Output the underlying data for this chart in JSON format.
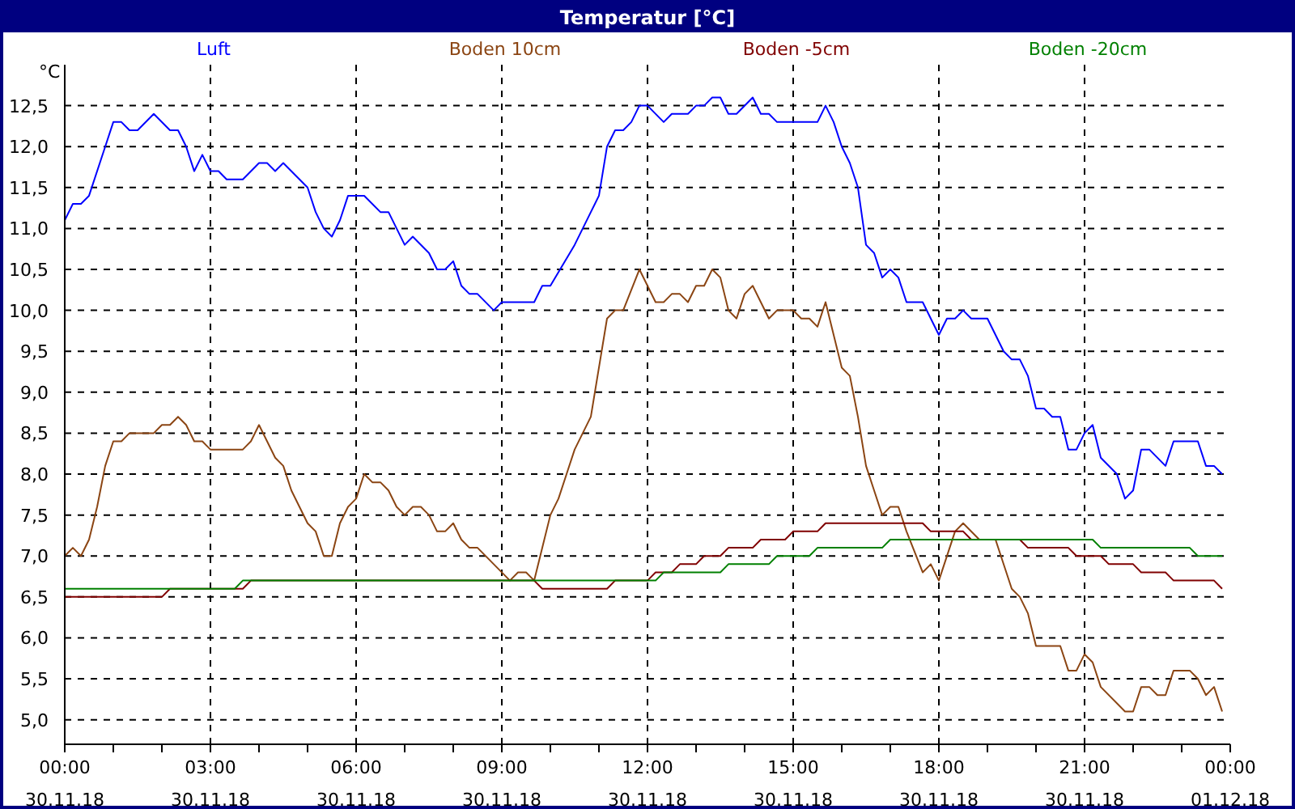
{
  "chart_data": {
    "type": "line",
    "title": "Temperatur [°C]",
    "ylabel": "°C",
    "legend": "top",
    "grid": true,
    "marker": "none",
    "line_style": "solid",
    "xlim": [
      "--11-30T00:00",
      "--12-01T00:00"
    ],
    "ylim": [
      4.7,
      13
    ],
    "xticks": [
      {
        "value": "--11-30T00:00",
        "label": "00:00\n30.11.18"
      },
      {
        "value": "--11-30T01:00",
        "label": null
      },
      {
        "value": "--11-30T02:00",
        "label": null
      },
      {
        "value": "--11-30T03:00",
        "label": "03:00\n30.11.18"
      },
      {
        "value": "--11-30T04:00",
        "label": null
      },
      {
        "value": "--11-30T05:00",
        "label": null
      },
      {
        "value": "--11-30T06:00",
        "label": "06:00\n30.11.18"
      },
      {
        "value": "--11-30T07:00",
        "label": null
      },
      {
        "value": "--11-30T08:00",
        "label": null
      },
      {
        "value": "--11-30T09:00",
        "label": "09:00\n30.11.18"
      },
      {
        "value": "--11-30T10:00",
        "label": null
      },
      {
        "value": "--11-30T11:00",
        "label": null
      },
      {
        "value": "--11-30T12:00",
        "label": "12:00\n30.11.18"
      },
      {
        "value": "--11-30T13:00",
        "label": null
      },
      {
        "value": "--11-30T14:00",
        "label": null
      },
      {
        "value": "--11-30T15:00",
        "label": "15:00\n30.11.18"
      },
      {
        "value": "--11-30T16:00",
        "label": null
      },
      {
        "value": "--11-30T17:00",
        "label": null
      },
      {
        "value": "--11-30T18:00",
        "label": "18:00\n30.11.18"
      },
      {
        "value": "--11-30T19:00",
        "label": null
      },
      {
        "value": "--11-30T20:00",
        "label": null
      },
      {
        "value": "--11-30T21:00",
        "label": "21:00\n30.11.18"
      },
      {
        "value": "--11-30T22:00",
        "label": null
      },
      {
        "value": "--11-30T23:00",
        "label": null
      },
      {
        "value": "--12-01T00:00",
        "label": "00:00\n01.12.18"
      }
    ],
    "yticks": [
      {
        "value": 5,
        "label": "5,0"
      },
      {
        "value": 5.5,
        "label": "5,5"
      },
      {
        "value": 6,
        "label": "6,0"
      },
      {
        "value": 6.5,
        "label": "6,5"
      },
      {
        "value": 7,
        "label": "7,0"
      },
      {
        "value": 7.5,
        "label": "7,5"
      },
      {
        "value": 8,
        "label": "8,0"
      },
      {
        "value": 8.5,
        "label": "8,5"
      },
      {
        "value": 9,
        "label": "9,0"
      },
      {
        "value": 9.5,
        "label": "9,5"
      },
      {
        "value": 10,
        "label": "10,0"
      },
      {
        "value": 10.5,
        "label": "10,5"
      },
      {
        "value": 11,
        "label": "11,0"
      },
      {
        "value": 11.5,
        "label": "11,5"
      },
      {
        "value": 12,
        "label": "12,0"
      },
      {
        "value": 12.5,
        "label": "12,5"
      }
    ],
    "series": [
      {
        "name": "Luft",
        "color": "#0000ff",
        "x": [
          "--11-30T00:00",
          "--11-30T00:10",
          "--11-30T00:20",
          "--11-30T00:30",
          "--11-30T00:50",
          "--11-30T01:00",
          "--11-30T01:10",
          "--11-30T01:20",
          "--11-30T01:30",
          "--11-30T01:50",
          "--11-30T02:10",
          "--11-30T02:20",
          "--11-30T02:30",
          "--11-30T02:40",
          "--11-30T02:50",
          "--11-30T03:00",
          "--11-30T03:10",
          "--11-30T03:20",
          "--11-30T03:40",
          "--11-30T04:00",
          "--11-30T04:10",
          "--11-30T04:20",
          "--11-30T04:30",
          "--11-30T05:00",
          "--11-30T05:10",
          "--11-30T05:20",
          "--11-30T05:30",
          "--11-30T05:40",
          "--11-30T05:50",
          "--11-30T06:10",
          "--11-30T06:30",
          "--11-30T06:40",
          "--11-30T07:00",
          "--11-30T07:10",
          "--11-30T07:30",
          "--11-30T07:40",
          "--11-30T07:50",
          "--11-30T08:00",
          "--11-30T08:10",
          "--11-30T08:20",
          "--11-30T08:30",
          "--11-30T08:50",
          "--11-30T09:00",
          "--11-30T09:40",
          "--11-30T09:50",
          "--11-30T10:00",
          "--11-30T10:30",
          "--11-30T10:40",
          "--11-30T10:50",
          "--11-30T11:00",
          "--11-30T11:10",
          "--11-30T11:20",
          "--11-30T11:30",
          "--11-30T11:40",
          "--11-30T11:50",
          "--11-30T12:00",
          "--11-30T12:20",
          "--11-30T12:30",
          "--11-30T12:50",
          "--11-30T13:00",
          "--11-30T13:10",
          "--11-30T13:20",
          "--11-30T13:30",
          "--11-30T13:40",
          "--11-30T13:50",
          "--11-30T14:10",
          "--11-30T14:20",
          "--11-30T14:30",
          "--11-30T14:40",
          "--11-30T15:30",
          "--11-30T15:40",
          "--11-30T15:50",
          "--11-30T16:00",
          "--11-30T16:10",
          "--11-30T16:20",
          "--11-30T16:30",
          "--11-30T16:40",
          "--11-30T16:50",
          "--11-30T17:00",
          "--11-30T17:10",
          "--11-30T17:20",
          "--11-30T17:40",
          "--11-30T18:00",
          "--11-30T18:10",
          "--11-30T18:20",
          "--11-30T18:30",
          "--11-30T18:40",
          "--11-30T19:00",
          "--11-30T19:20",
          "--11-30T19:30",
          "--11-30T19:40",
          "--11-30T19:50",
          "--11-30T20:00",
          "--11-30T20:10",
          "--11-30T20:20",
          "--11-30T20:30",
          "--11-30T20:40",
          "--11-30T20:50",
          "--11-30T21:00",
          "--11-30T21:10",
          "--11-30T21:20",
          "--11-30T21:40",
          "--11-30T21:50",
          "--11-30T22:00",
          "--11-30T22:10",
          "--11-30T22:20",
          "--11-30T22:40",
          "--11-30T22:50",
          "--11-30T23:20",
          "--11-30T23:30",
          "--11-30T23:40",
          "--11-30T23:50"
        ],
        "values": [
          11.1,
          11.3,
          11.3,
          11.4,
          12,
          12.3,
          12.3,
          12.2,
          12.2,
          12.4,
          12.2,
          12.2,
          12,
          11.7,
          11.9,
          11.7,
          11.7,
          11.6,
          11.6,
          11.8,
          11.8,
          11.7,
          11.8,
          11.5,
          11.2,
          11,
          10.9,
          11.1,
          11.4,
          11.4,
          11.2,
          11.2,
          10.8,
          10.9,
          10.7,
          10.5,
          10.5,
          10.6,
          10.3,
          10.2,
          10.2,
          10,
          10.1,
          10.1,
          10.3,
          10.3,
          10.8,
          11,
          11.2,
          11.4,
          12,
          12.2,
          12.2,
          12.3,
          12.5,
          12.5,
          12.3,
          12.4,
          12.4,
          12.5,
          12.5,
          12.6,
          12.6,
          12.4,
          12.4,
          12.6,
          12.4,
          12.4,
          12.3,
          12.3,
          12.5,
          12.3,
          12,
          11.8,
          11.5,
          10.8,
          10.7,
          10.4,
          10.5,
          10.4,
          10.1,
          10.1,
          9.7,
          9.9,
          9.9,
          10,
          9.9,
          9.9,
          9.5,
          9.4,
          9.4,
          9.2,
          8.8,
          8.8,
          8.7,
          8.7,
          8.3,
          8.3,
          8.5,
          8.6,
          8.2,
          8,
          7.7,
          7.8,
          8.3,
          8.3,
          8.1,
          8.4,
          8.4,
          8.1,
          8.1,
          8
        ]
      },
      {
        "name": "Boden 10cm",
        "color": "#8b4513",
        "x": [
          "--11-30T00:00",
          "--11-30T00:10",
          "--11-30T00:20",
          "--11-30T00:30",
          "--11-30T00:40",
          "--11-30T00:50",
          "--11-30T01:00",
          "--11-30T01:10",
          "--11-30T01:20",
          "--11-30T01:50",
          "--11-30T02:00",
          "--11-30T02:10",
          "--11-30T02:20",
          "--11-30T02:30",
          "--11-30T02:40",
          "--11-30T02:50",
          "--11-30T03:00",
          "--11-30T03:40",
          "--11-30T03:50",
          "--11-30T04:00",
          "--11-30T04:10",
          "--11-30T04:20",
          "--11-30T04:30",
          "--11-30T04:40",
          "--11-30T04:50",
          "--11-30T05:00",
          "--11-30T05:10",
          "--11-30T05:20",
          "--11-30T05:30",
          "--11-30T05:40",
          "--11-30T05:50",
          "--11-30T06:00",
          "--11-30T06:10",
          "--11-30T06:20",
          "--11-30T06:30",
          "--11-30T06:40",
          "--11-30T06:50",
          "--11-30T07:00",
          "--11-30T07:10",
          "--11-30T07:20",
          "--11-30T07:30",
          "--11-30T07:40",
          "--11-30T07:50",
          "--11-30T08:00",
          "--11-30T08:10",
          "--11-30T08:20",
          "--11-30T08:30",
          "--11-30T09:10",
          "--11-30T09:20",
          "--11-30T09:30",
          "--11-30T09:40",
          "--11-30T09:50",
          "--11-30T10:00",
          "--11-30T10:10",
          "--11-30T10:20",
          "--11-30T10:30",
          "--11-30T10:40",
          "--11-30T10:50",
          "--11-30T11:00",
          "--11-30T11:10",
          "--11-30T11:20",
          "--11-30T11:30",
          "--11-30T11:50",
          "--11-30T12:00",
          "--11-30T12:10",
          "--11-30T12:20",
          "--11-30T12:30",
          "--11-30T12:40",
          "--11-30T12:50",
          "--11-30T13:00",
          "--11-30T13:10",
          "--11-30T13:20",
          "--11-30T13:30",
          "--11-30T13:40",
          "--11-30T13:50",
          "--11-30T14:00",
          "--11-30T14:10",
          "--11-30T14:30",
          "--11-30T14:40",
          "--11-30T15:00",
          "--11-30T15:10",
          "--11-30T15:20",
          "--11-30T15:30",
          "--11-30T15:40",
          "--11-30T15:50",
          "--11-30T16:00",
          "--11-30T16:10",
          "--11-30T16:20",
          "--11-30T16:30",
          "--11-30T16:40",
          "--11-30T16:50",
          "--11-30T17:00",
          "--11-30T17:10",
          "--11-30T17:20",
          "--11-30T17:40",
          "--11-30T17:50",
          "--11-30T18:00",
          "--11-30T18:20",
          "--11-30T18:30",
          "--11-30T18:50",
          "--11-30T19:10",
          "--11-30T19:30",
          "--11-30T19:40",
          "--11-30T19:50",
          "--11-30T20:00",
          "--11-30T20:30",
          "--11-30T20:40",
          "--11-30T20:50",
          "--11-30T21:00",
          "--11-30T21:10",
          "--11-30T21:20",
          "--11-30T21:50",
          "--11-30T22:00",
          "--11-30T22:10",
          "--11-30T22:20",
          "--11-30T22:30",
          "--11-30T22:40",
          "--11-30T22:50",
          "--11-30T23:10",
          "--11-30T23:20",
          "--11-30T23:30",
          "--11-30T23:40",
          "--11-30T23:50"
        ],
        "values": [
          7,
          7.1,
          7,
          7.2,
          7.6,
          8.1,
          8.4,
          8.4,
          8.5,
          8.5,
          8.6,
          8.6,
          8.7,
          8.6,
          8.4,
          8.4,
          8.3,
          8.3,
          8.4,
          8.6,
          8.4,
          8.2,
          8.1,
          7.8,
          7.6,
          7.4,
          7.3,
          7,
          7,
          7.4,
          7.6,
          7.7,
          8,
          7.9,
          7.9,
          7.8,
          7.6,
          7.5,
          7.6,
          7.6,
          7.5,
          7.3,
          7.3,
          7.4,
          7.2,
          7.1,
          7.1,
          6.7,
          6.8,
          6.8,
          6.7,
          7.1,
          7.5,
          7.7,
          8,
          8.3,
          8.5,
          8.7,
          9.3,
          9.9,
          10,
          10,
          10.5,
          10.3,
          10.1,
          10.1,
          10.2,
          10.2,
          10.1,
          10.3,
          10.3,
          10.5,
          10.4,
          10,
          9.9,
          10.2,
          10.3,
          9.9,
          10,
          10,
          9.9,
          9.9,
          9.8,
          10.1,
          9.7,
          9.3,
          9.2,
          8.7,
          8.1,
          7.8,
          7.5,
          7.6,
          7.6,
          7.3,
          6.8,
          6.9,
          6.7,
          7.3,
          7.4,
          7.2,
          7.2,
          6.6,
          6.5,
          6.3,
          5.9,
          5.9,
          5.6,
          5.6,
          5.8,
          5.7,
          5.4,
          5.1,
          5.1,
          5.4,
          5.4,
          5.3,
          5.3,
          5.6,
          5.6,
          5.5,
          5.3,
          5.4,
          5.1
        ]
      },
      {
        "name": "Boden -5cm",
        "color": "#800000",
        "x": [
          "--11-30T00:00",
          "--11-30T02:00",
          "--11-30T02:10",
          "--11-30T03:40",
          "--11-30T03:50",
          "--11-30T09:40",
          "--11-30T09:50",
          "--11-30T11:10",
          "--11-30T11:20",
          "--11-30T12:00",
          "--11-30T12:10",
          "--11-30T12:30",
          "--11-30T12:40",
          "--11-30T13:00",
          "--11-30T13:10",
          "--11-30T13:30",
          "--11-30T13:40",
          "--11-30T14:10",
          "--11-30T14:20",
          "--11-30T14:50",
          "--11-30T15:00",
          "--11-30T15:30",
          "--11-30T15:40",
          "--11-30T17:40",
          "--11-30T17:50",
          "--11-30T18:30",
          "--11-30T18:40",
          "--11-30T19:40",
          "--11-30T19:50",
          "--11-30T20:40",
          "--11-30T20:50",
          "--11-30T21:20",
          "--11-30T21:30",
          "--11-30T22:00",
          "--11-30T22:10",
          "--11-30T22:40",
          "--11-30T22:50",
          "--11-30T23:40",
          "--11-30T23:50"
        ],
        "values": [
          6.5,
          6.5,
          6.6,
          6.6,
          6.7,
          6.7,
          6.6,
          6.6,
          6.7,
          6.7,
          6.8,
          6.8,
          6.9,
          6.9,
          7,
          7,
          7.1,
          7.1,
          7.2,
          7.2,
          7.3,
          7.3,
          7.4,
          7.4,
          7.3,
          7.3,
          7.2,
          7.2,
          7.1,
          7.1,
          7,
          7,
          6.9,
          6.9,
          6.8,
          6.8,
          6.7,
          6.7,
          6.6
        ]
      },
      {
        "name": "Boden -20cm",
        "color": "#008000",
        "x": [
          "--11-30T00:00",
          "--11-30T03:30",
          "--11-30T03:40",
          "--11-30T12:10",
          "--11-30T12:20",
          "--11-30T13:30",
          "--11-30T13:40",
          "--11-30T14:30",
          "--11-30T14:40",
          "--11-30T15:20",
          "--11-30T15:30",
          "--11-30T16:50",
          "--11-30T17:00",
          "--11-30T21:10",
          "--11-30T21:20",
          "--11-30T23:10",
          "--11-30T23:20",
          "--11-30T23:50"
        ],
        "values": [
          6.6,
          6.6,
          6.7,
          6.7,
          6.8,
          6.8,
          6.9,
          6.9,
          7,
          7,
          7.1,
          7.1,
          7.2,
          7.2,
          7.1,
          7.1,
          7,
          7
        ]
      }
    ]
  }
}
